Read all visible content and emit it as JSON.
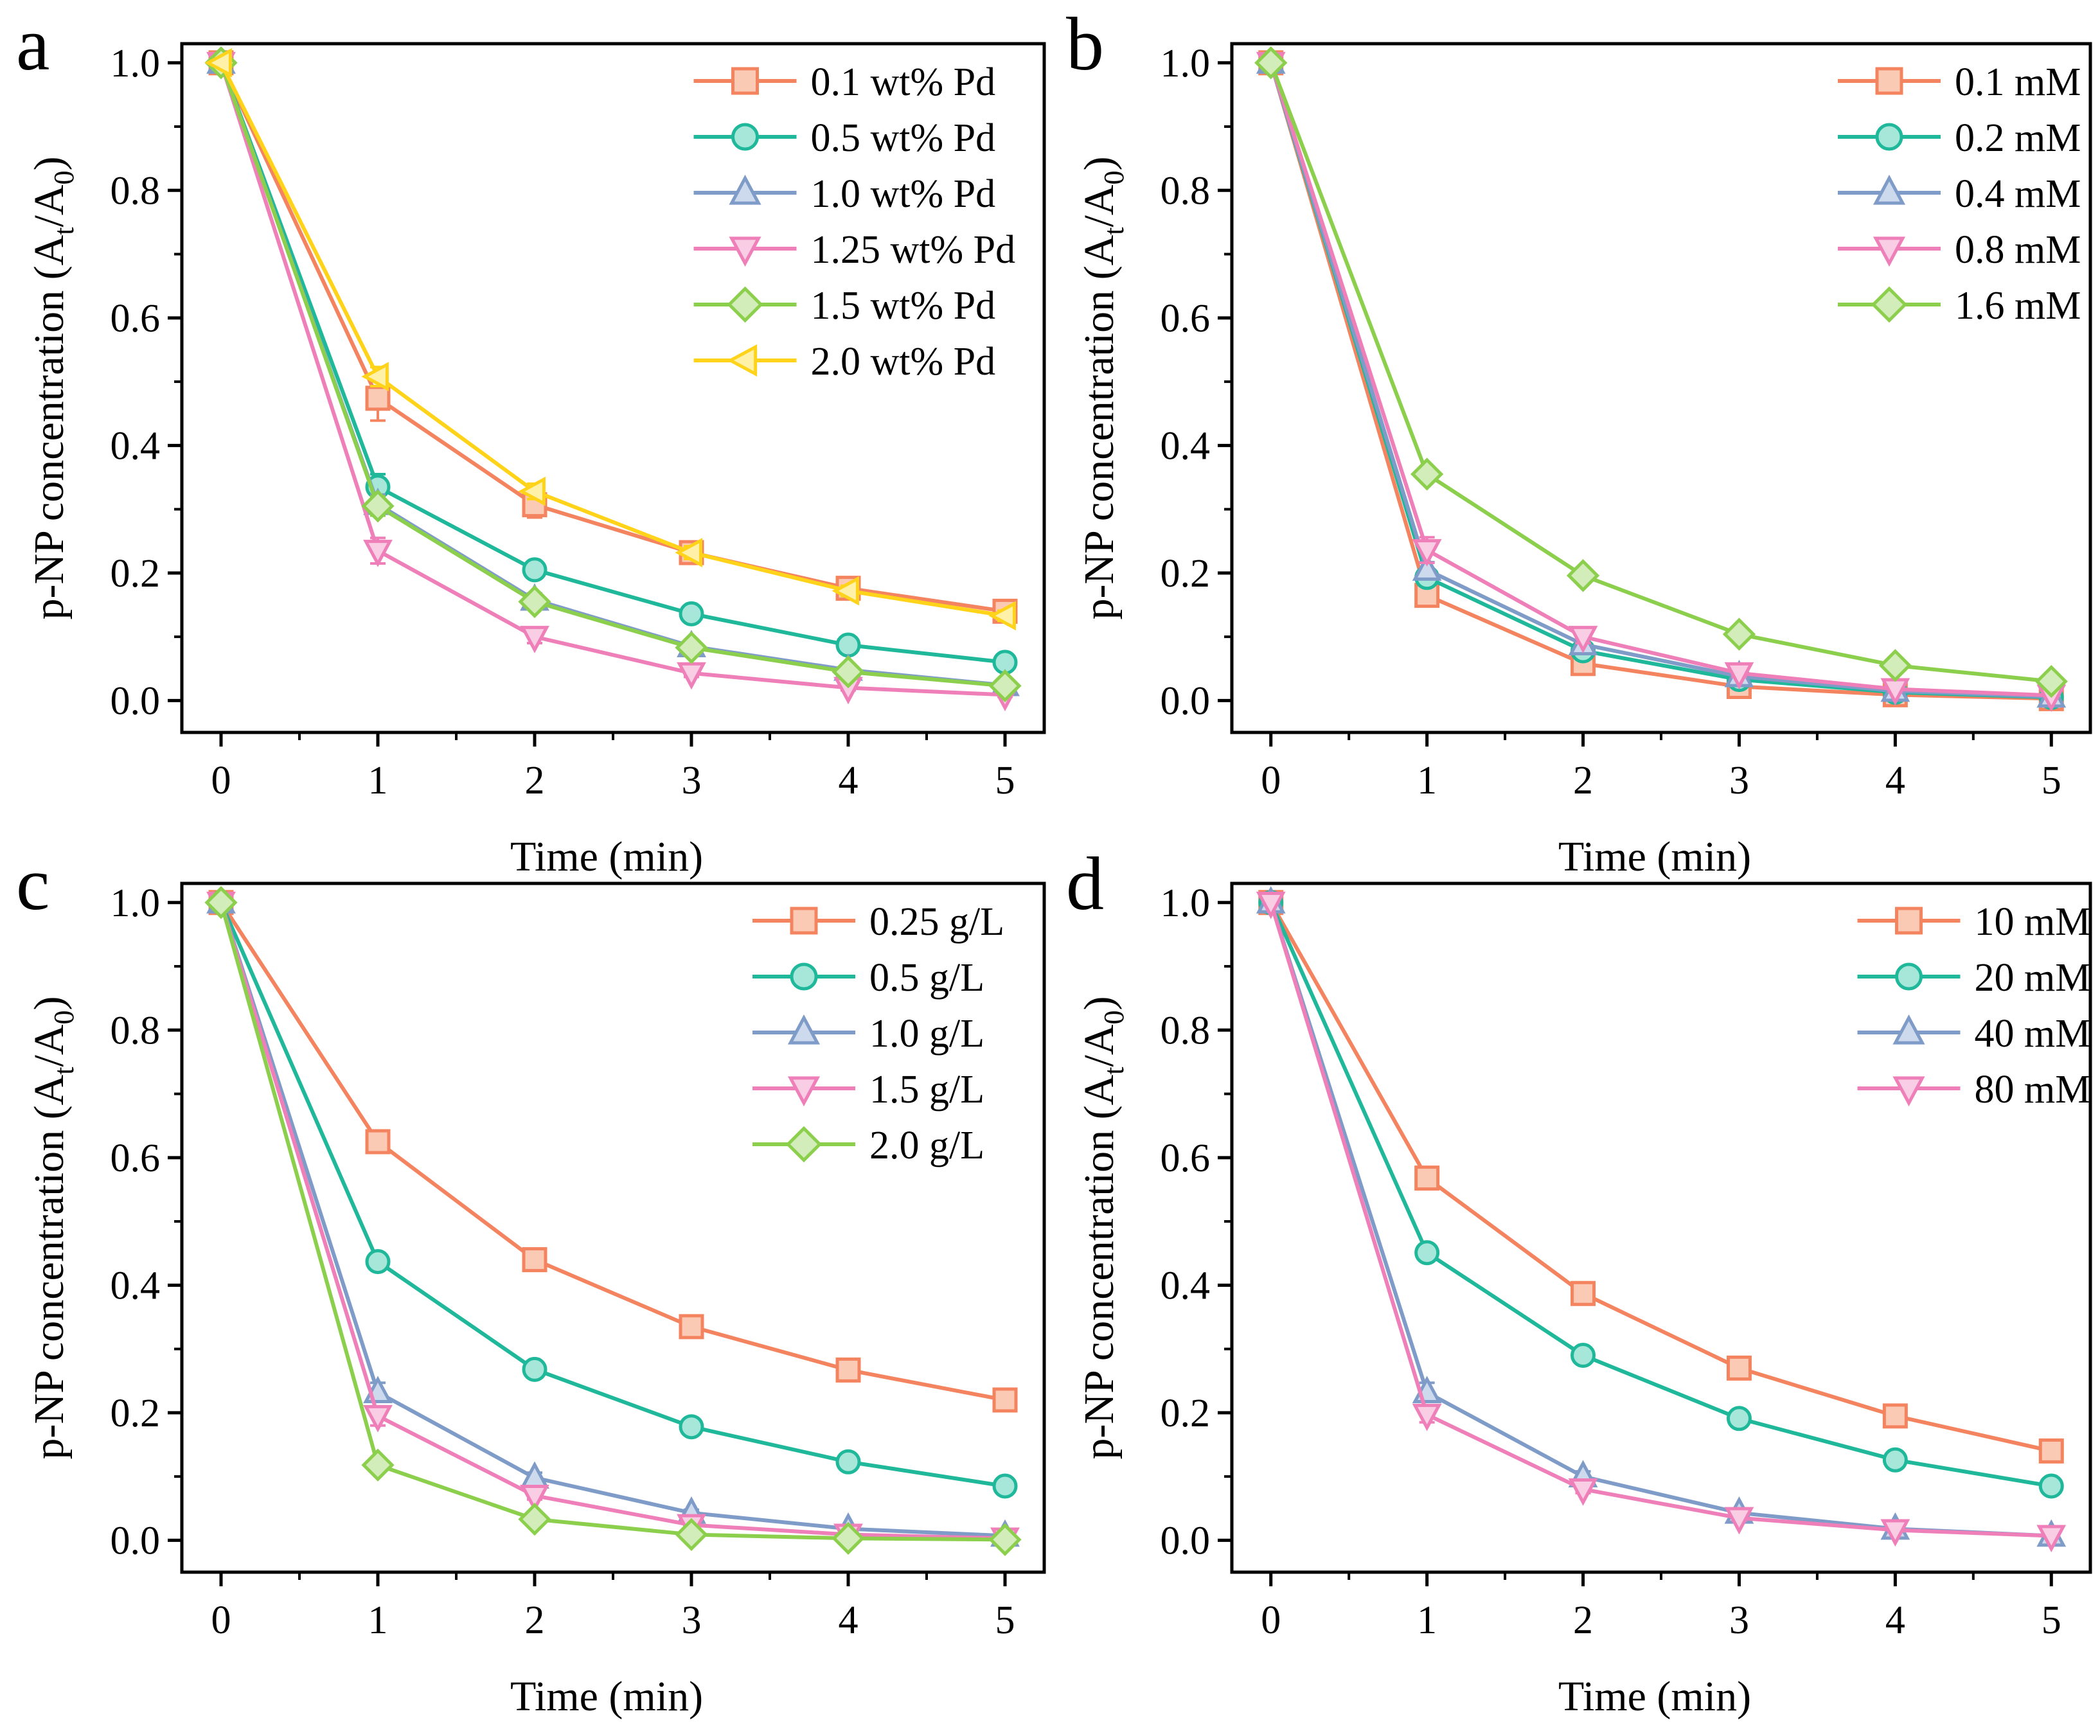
{
  "figure": {
    "colors": {
      "orange": "#f4845f",
      "orange_fill": "#fbcab5",
      "teal": "#1fb89a",
      "teal_fill": "#a6e7d9",
      "blue": "#7f9cc9",
      "blue_fill": "#cdd9ec",
      "pink": "#ef7fb8",
      "pink_fill": "#f9cde3",
      "green": "#8ccf4d",
      "green_fill": "#d3edba",
      "yellow": "#ffd319",
      "yellow_fill": "#fff2a8"
    }
  },
  "chart_data": [
    {
      "panel_label": "a",
      "type": "line",
      "xlabel": "Time (min)",
      "ylabel": "p-NP concentration (A",
      "ylabel_sub1": "t",
      "ylabel_mid": "/A",
      "ylabel_sub2": "0",
      "ylabel_end": ")",
      "x": [
        0,
        1,
        2,
        3,
        4,
        5
      ],
      "xlim": [
        -0.25,
        5.25
      ],
      "ylim": [
        -0.05,
        1.03
      ],
      "xticks": [
        "0",
        "1",
        "2",
        "3",
        "4",
        "5"
      ],
      "yticks": [
        "0.0",
        "0.2",
        "0.4",
        "0.6",
        "0.8",
        "1.0"
      ],
      "series": [
        {
          "name": "0.1 wt% Pd",
          "marker": "square",
          "color": "orange",
          "values": [
            1.0,
            0.474,
            0.307,
            0.232,
            0.176,
            0.14
          ],
          "errors": [
            0,
            0.035,
            0.02,
            0.012,
            0.01,
            0.01
          ]
        },
        {
          "name": "0.5 wt% Pd",
          "marker": "circle",
          "color": "teal",
          "values": [
            1.0,
            0.335,
            0.205,
            0.136,
            0.087,
            0.06
          ],
          "errors": [
            0,
            0.02,
            0.012,
            0.01,
            0.008,
            0.006
          ]
        },
        {
          "name": "1.0 wt% Pd",
          "marker": "triangle-up",
          "color": "blue",
          "values": [
            1.0,
            0.308,
            0.158,
            0.085,
            0.048,
            0.024
          ],
          "errors": [
            0,
            0.015,
            0.01,
            0.008,
            0.006,
            0.004
          ]
        },
        {
          "name": "1.25 wt% Pd",
          "marker": "triangle-down",
          "color": "pink",
          "values": [
            1.0,
            0.235,
            0.1,
            0.043,
            0.02,
            0.009
          ],
          "errors": [
            0,
            0.02,
            0.01,
            0.006,
            0.004,
            0.003
          ]
        },
        {
          "name": "1.5 wt% Pd",
          "marker": "diamond",
          "color": "green",
          "values": [
            1.0,
            0.305,
            0.155,
            0.083,
            0.045,
            0.023
          ],
          "errors": [
            0,
            0.015,
            0.01,
            0.008,
            0.006,
            0.004
          ]
        },
        {
          "name": "2.0 wt% Pd",
          "marker": "triangle-left",
          "color": "yellow",
          "values": [
            1.0,
            0.508,
            0.328,
            0.232,
            0.172,
            0.133
          ],
          "errors": [
            0,
            0.015,
            0.012,
            0.01,
            0.008,
            0.008
          ]
        }
      ]
    },
    {
      "panel_label": "b",
      "type": "line",
      "xlabel": "Time (min)",
      "ylabel": "p-NP concentration (A",
      "ylabel_sub1": "t",
      "ylabel_mid": "/A",
      "ylabel_sub2": "0",
      "ylabel_end": ")",
      "x": [
        0,
        1,
        2,
        3,
        4,
        5
      ],
      "xlim": [
        -0.25,
        5.25
      ],
      "ylim": [
        -0.05,
        1.03
      ],
      "xticks": [
        "0",
        "1",
        "2",
        "3",
        "4",
        "5"
      ],
      "yticks": [
        "0.0",
        "0.2",
        "0.4",
        "0.6",
        "0.8",
        "1.0"
      ],
      "series": [
        {
          "name": "0.1 mM",
          "marker": "square",
          "color": "orange",
          "values": [
            1.0,
            0.165,
            0.058,
            0.022,
            0.009,
            0.003
          ],
          "errors": [
            0,
            0.01,
            0.006,
            0.004,
            0.003,
            0.002
          ]
        },
        {
          "name": "0.2 mM",
          "marker": "circle",
          "color": "teal",
          "values": [
            1.0,
            0.193,
            0.078,
            0.033,
            0.013,
            0.005
          ],
          "errors": [
            0,
            0.01,
            0.006,
            0.004,
            0.003,
            0.002
          ]
        },
        {
          "name": "0.4 mM",
          "marker": "triangle-up",
          "color": "blue",
          "values": [
            1.0,
            0.205,
            0.088,
            0.038,
            0.015,
            0.006
          ],
          "errors": [
            0,
            0.012,
            0.008,
            0.005,
            0.004,
            0.002
          ]
        },
        {
          "name": "0.8 mM",
          "marker": "triangle-down",
          "color": "pink",
          "values": [
            1.0,
            0.236,
            0.1,
            0.043,
            0.018,
            0.008
          ],
          "errors": [
            0,
            0.02,
            0.01,
            0.006,
            0.004,
            0.003
          ]
        },
        {
          "name": "1.6 mM",
          "marker": "diamond",
          "color": "green",
          "values": [
            1.0,
            0.355,
            0.196,
            0.104,
            0.055,
            0.03
          ],
          "errors": [
            0,
            0.01,
            0.008,
            0.006,
            0.004,
            0.003
          ]
        }
      ]
    },
    {
      "panel_label": "c",
      "type": "line",
      "xlabel": "Time (min)",
      "ylabel": "p-NP concentration (A",
      "ylabel_sub1": "t",
      "ylabel_mid": "/A",
      "ylabel_sub2": "0",
      "ylabel_end": ")",
      "x": [
        0,
        1,
        2,
        3,
        4,
        5
      ],
      "xlim": [
        -0.25,
        5.25
      ],
      "ylim": [
        -0.05,
        1.03
      ],
      "xticks": [
        "0",
        "1",
        "2",
        "3",
        "4",
        "5"
      ],
      "yticks": [
        "0.0",
        "0.2",
        "0.4",
        "0.6",
        "0.8",
        "1.0"
      ],
      "series": [
        {
          "name": "0.25 g/L",
          "marker": "square",
          "color": "orange",
          "values": [
            1.0,
            0.625,
            0.44,
            0.335,
            0.267,
            0.22
          ],
          "errors": [
            0,
            0.01,
            0.01,
            0.012,
            0.01,
            0.01
          ]
        },
        {
          "name": "0.5 g/L",
          "marker": "circle",
          "color": "teal",
          "values": [
            1.0,
            0.437,
            0.268,
            0.178,
            0.123,
            0.085
          ],
          "errors": [
            0,
            0.01,
            0.008,
            0.006,
            0.006,
            0.005
          ]
        },
        {
          "name": "1.0 g/L",
          "marker": "triangle-up",
          "color": "blue",
          "values": [
            1.0,
            0.232,
            0.098,
            0.043,
            0.018,
            0.007
          ],
          "errors": [
            0,
            0.015,
            0.008,
            0.005,
            0.004,
            0.002
          ]
        },
        {
          "name": "1.5 g/L",
          "marker": "triangle-down",
          "color": "pink",
          "values": [
            1.0,
            0.195,
            0.07,
            0.024,
            0.009,
            0.003
          ],
          "errors": [
            0,
            0.015,
            0.006,
            0.004,
            0.003,
            0.002
          ]
        },
        {
          "name": "2.0 g/L",
          "marker": "diamond",
          "color": "green",
          "values": [
            1.0,
            0.118,
            0.033,
            0.009,
            0.003,
            0.001
          ],
          "errors": [
            0,
            0.008,
            0.005,
            0.003,
            0.002,
            0.001
          ]
        }
      ]
    },
    {
      "panel_label": "d",
      "type": "line",
      "xlabel": "Time (min)",
      "ylabel": "p-NP concentration (A",
      "ylabel_sub1": "t",
      "ylabel_mid": "/A",
      "ylabel_sub2": "0",
      "ylabel_end": ")",
      "x": [
        0,
        1,
        2,
        3,
        4,
        5
      ],
      "xlim": [
        -0.25,
        5.25
      ],
      "ylim": [
        -0.05,
        1.03
      ],
      "xticks": [
        "0",
        "1",
        "2",
        "3",
        "4",
        "5"
      ],
      "yticks": [
        "0.0",
        "0.2",
        "0.4",
        "0.6",
        "0.8",
        "1.0"
      ],
      "series": [
        {
          "name": "10 mM",
          "marker": "square",
          "color": "orange",
          "values": [
            1.0,
            0.568,
            0.387,
            0.27,
            0.195,
            0.14
          ],
          "errors": [
            0,
            0.01,
            0.015,
            0.015,
            0.012,
            0.01
          ]
        },
        {
          "name": "20 mM",
          "marker": "circle",
          "color": "teal",
          "values": [
            1.0,
            0.451,
            0.29,
            0.191,
            0.126,
            0.085
          ],
          "errors": [
            0,
            0.01,
            0.01,
            0.01,
            0.01,
            0.008
          ]
        },
        {
          "name": "40 mM",
          "marker": "triangle-up",
          "color": "blue",
          "values": [
            1.0,
            0.232,
            0.1,
            0.043,
            0.018,
            0.007
          ],
          "errors": [
            0,
            0.015,
            0.008,
            0.005,
            0.004,
            0.002
          ]
        },
        {
          "name": "80 mM",
          "marker": "triangle-down",
          "color": "pink",
          "values": [
            1.0,
            0.197,
            0.08,
            0.035,
            0.016,
            0.007
          ],
          "errors": [
            0,
            0.012,
            0.006,
            0.004,
            0.003,
            0.002
          ]
        }
      ]
    }
  ]
}
